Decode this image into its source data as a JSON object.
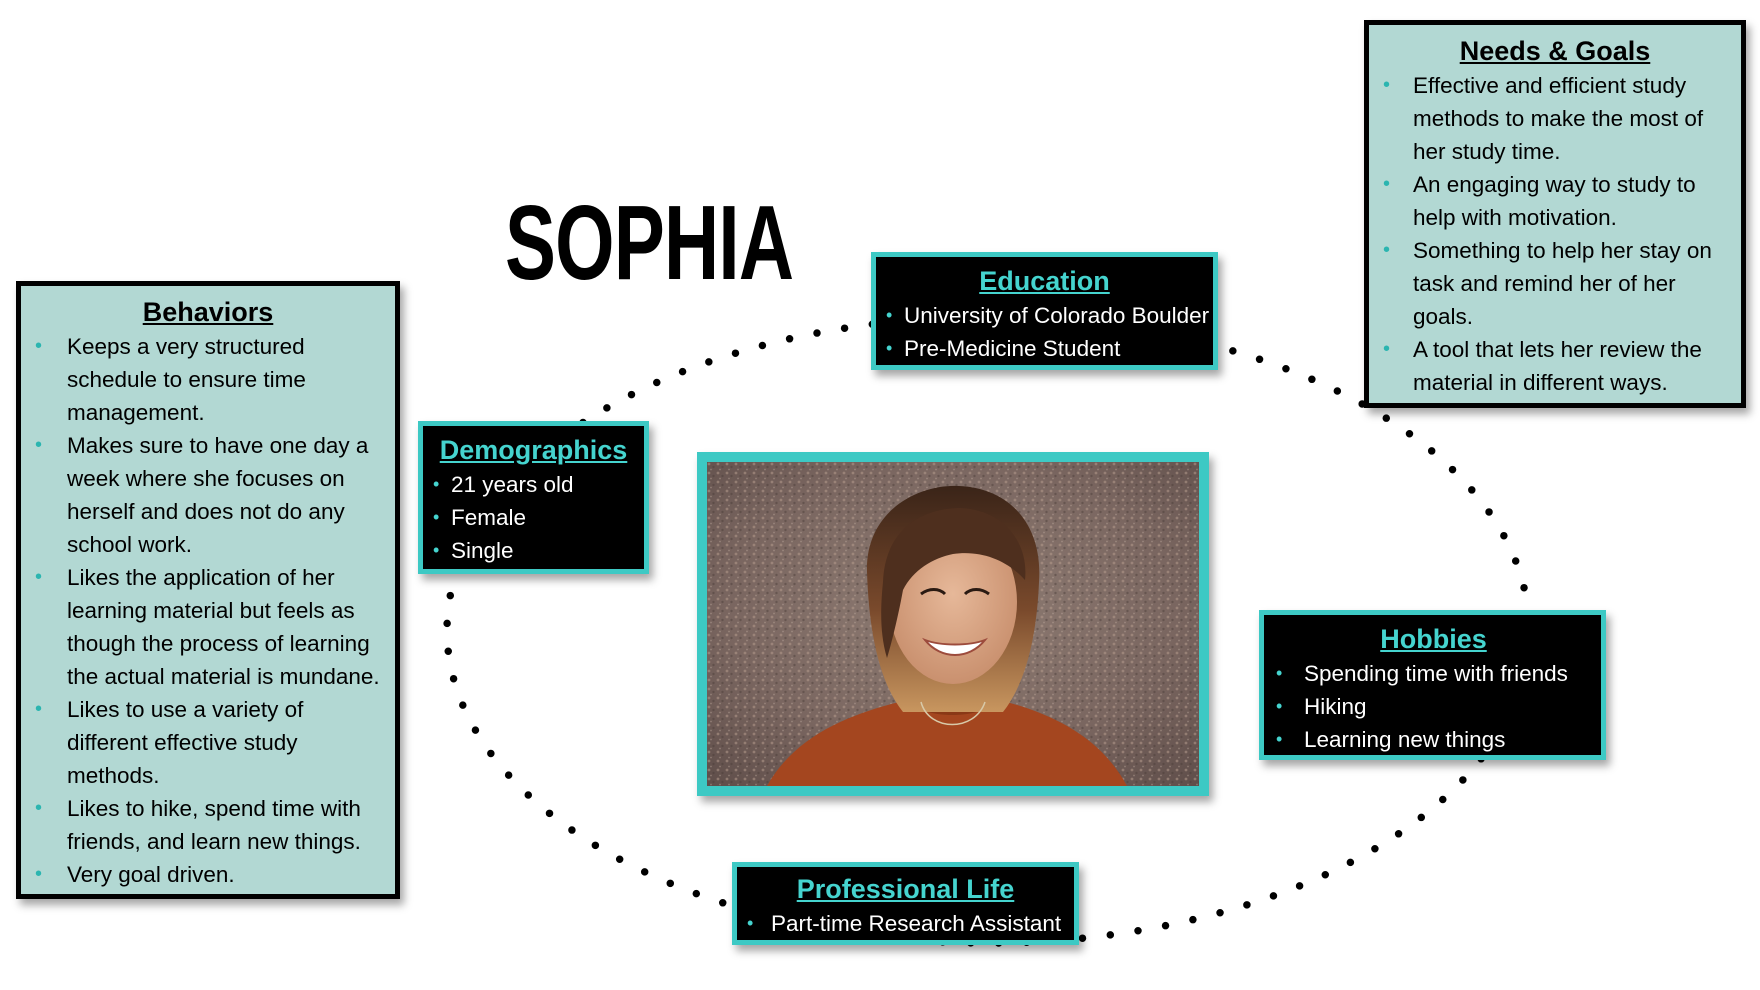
{
  "persona_name": "SOPHIA",
  "colors": {
    "teal_accent": "#3dc9c4",
    "light_teal": "#b2d8d3",
    "dark_box": "#000000"
  },
  "behaviors": {
    "heading": "Behaviors",
    "items": [
      "Keeps a very structured schedule to ensure time management.",
      "Makes sure to have one day a week where she focuses on herself and does not do any school work.",
      "Likes the application of her learning material but feels as though the process of learning the actual material is mundane.",
      "Likes to use a variety of different effective study methods.",
      "Likes to hike, spend time with friends, and learn new things.",
      "Very goal driven."
    ]
  },
  "needs_goals": {
    "heading": "Needs & Goals",
    "items": [
      "Effective and efficient study methods to make the most of her study time.",
      "An engaging way to study to help with motivation.",
      "Something to help her stay on task and remind her of her goals.",
      "A tool that lets her review the material in different ways."
    ]
  },
  "demographics": {
    "heading": "Demographics",
    "items": [
      "21 years old",
      "Female",
      "Single"
    ]
  },
  "education": {
    "heading": "Education",
    "items": [
      "University of Colorado Boulder",
      "Pre-Medicine Student"
    ]
  },
  "hobbies": {
    "heading": "Hobbies",
    "items": [
      "Spending time with friends",
      "Hiking",
      "Learning new things"
    ]
  },
  "professional_life": {
    "heading": "Professional Life",
    "items": [
      "Part-time Research Assistant"
    ]
  }
}
